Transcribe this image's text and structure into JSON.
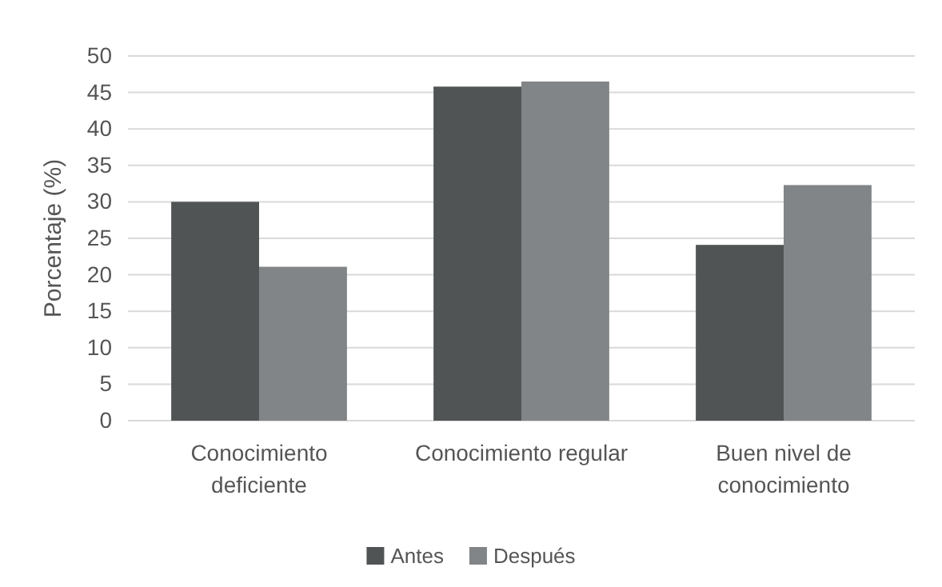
{
  "chart_data": {
    "type": "bar",
    "ylabel": "Porcentaje (%)",
    "categories": [
      "Conocimiento deficiente",
      "Conocimiento regular",
      "Buen nivel de conocimiento"
    ],
    "series": [
      {
        "name": "Antes",
        "color": "#505454",
        "values": [
          30,
          45.8,
          24.1
        ]
      },
      {
        "name": "Después",
        "color": "#828587",
        "values": [
          21.1,
          46.5,
          32.3
        ]
      }
    ],
    "ylim": [
      0,
      50
    ],
    "yticks": [
      0,
      5,
      10,
      15,
      20,
      25,
      30,
      35,
      40,
      45,
      50
    ],
    "grid": "y",
    "legend": "bottom"
  }
}
